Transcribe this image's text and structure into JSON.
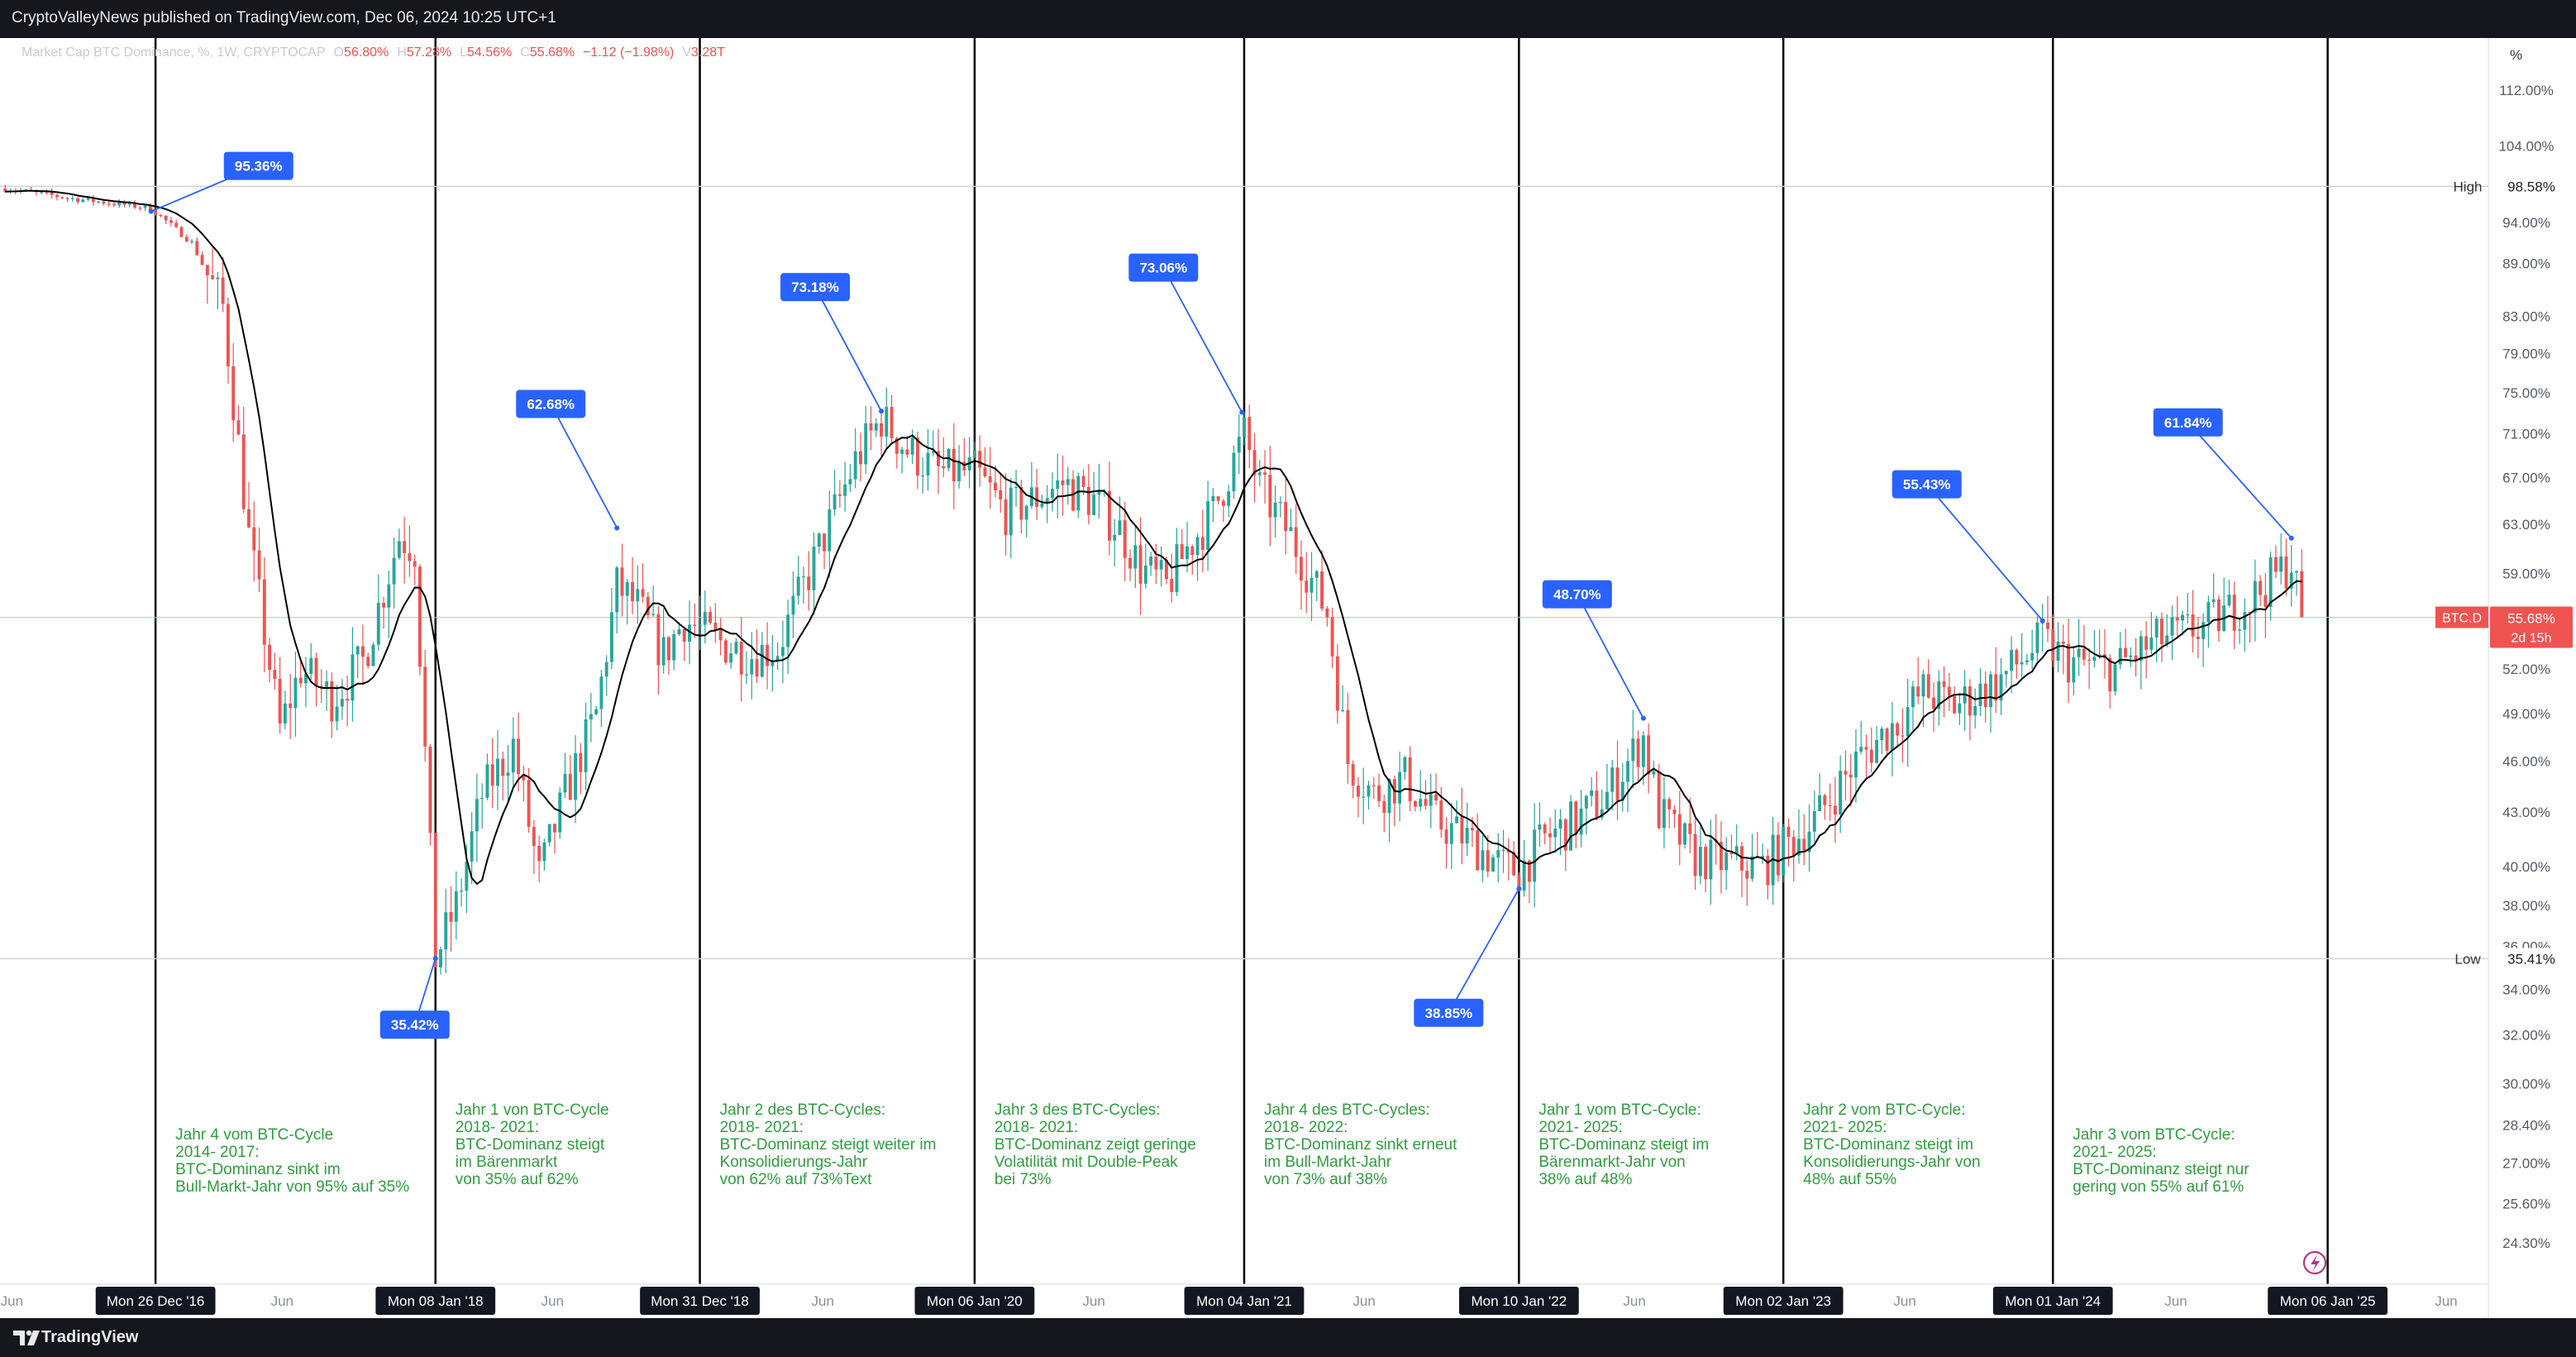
{
  "header": {
    "publisher_line": "CryptoValleyNews published on TradingView.com, Dec 06, 2024 10:25 UTC+1"
  },
  "legend": {
    "symbol": "Market Cap BTC Dominance, %, 1W, CRYPTOCAP",
    "o_label": "O",
    "o_value": "56.80%",
    "h_label": "H",
    "h_value": "57.28%",
    "l_label": "L",
    "l_value": "54.56%",
    "c_label": "C",
    "c_value": "55.68%",
    "change": "−1.12 (−1.98%)",
    "v_label": "V",
    "v_value": "3.28T"
  },
  "footer": {
    "brand": "TradingView"
  },
  "colors": {
    "up": "#26a69a",
    "down": "#ef5350",
    "callout": "#2962ff",
    "annotation": "#2e9e3e",
    "divider": "#000000",
    "ma": "#000000"
  },
  "chart_data": {
    "type": "candlestick",
    "title": "Market Cap BTC Dominance, %, 1W, CRYPTOCAP",
    "ylabel": "%",
    "ylim": [
      23.0,
      120.0
    ],
    "y_scale": "log",
    "y_ticks": [
      "112.00%",
      "104.00%",
      "94.00%",
      "89.00%",
      "83.00%",
      "79.00%",
      "75.00%",
      "71.00%",
      "67.00%",
      "63.00%",
      "59.00%",
      "52.00%",
      "49.00%",
      "46.00%",
      "43.00%",
      "40.00%",
      "38.00%",
      "36.00%",
      "34.00%",
      "32.00%",
      "30.00%",
      "28.40%",
      "27.00%",
      "25.60%",
      "24.30%"
    ],
    "x_ticks": [
      {
        "date": "2016-06-15",
        "label": "Jun",
        "major": false
      },
      {
        "date": "2016-12-26",
        "label": "Mon 26 Dec '16",
        "major": true
      },
      {
        "date": "2017-06-15",
        "label": "Jun",
        "major": false
      },
      {
        "date": "2018-01-08",
        "label": "Mon 08 Jan '18",
        "major": true
      },
      {
        "date": "2018-06-15",
        "label": "Jun",
        "major": false
      },
      {
        "date": "2018-12-31",
        "label": "Mon 31 Dec '18",
        "major": true
      },
      {
        "date": "2019-06-15",
        "label": "Jun",
        "major": false
      },
      {
        "date": "2020-01-06",
        "label": "Mon 06 Jan '20",
        "major": true
      },
      {
        "date": "2020-06-15",
        "label": "Jun",
        "major": false
      },
      {
        "date": "2021-01-04",
        "label": "Mon 04 Jan '21",
        "major": true
      },
      {
        "date": "2021-06-15",
        "label": "Jun",
        "major": false
      },
      {
        "date": "2022-01-10",
        "label": "Mon 10 Jan '22",
        "major": true
      },
      {
        "date": "2022-06-15",
        "label": "Jun",
        "major": false
      },
      {
        "date": "2023-01-02",
        "label": "Mon 02 Jan '23",
        "major": true
      },
      {
        "date": "2023-06-15",
        "label": "Jun",
        "major": false
      },
      {
        "date": "2024-01-01",
        "label": "Mon 01 Jan '24",
        "major": true
      },
      {
        "date": "2024-06-15",
        "label": "Jun",
        "major": false
      },
      {
        "date": "2025-01-06",
        "label": "Mon 06 Jan '25",
        "major": true
      },
      {
        "date": "2025-06-15",
        "label": "Jun",
        "major": false
      }
    ],
    "cycle_dividers": [
      "2016-12-26",
      "2018-01-08",
      "2018-12-31",
      "2020-01-06",
      "2021-01-04",
      "2022-01-10",
      "2023-01-02",
      "2024-01-01",
      "2025-01-06"
    ],
    "high_line": {
      "label": "High",
      "value": 98.58,
      "text": "98.58%"
    },
    "low_line": {
      "label": "Low",
      "value": 35.41,
      "text": "35.41%"
    },
    "current_price": {
      "symbol": "BTC.D",
      "value": 55.68,
      "text": "55.68%",
      "countdown": "2d 15h"
    },
    "callouts": [
      {
        "text": "95.36%",
        "date": "2016-12-20",
        "value": 95.36,
        "dir": "up"
      },
      {
        "text": "35.42%",
        "date": "2018-01-08",
        "value": 35.42,
        "dir": "down"
      },
      {
        "text": "62.68%",
        "date": "2018-09-10",
        "value": 62.68,
        "dir": "up"
      },
      {
        "text": "73.18%",
        "date": "2019-09-02",
        "value": 73.18,
        "dir": "up"
      },
      {
        "text": "73.06%",
        "date": "2021-01-01",
        "value": 73.06,
        "dir": "up"
      },
      {
        "text": "38.85%",
        "date": "2022-01-10",
        "value": 38.85,
        "dir": "down"
      },
      {
        "text": "48.70%",
        "date": "2022-06-27",
        "value": 48.7,
        "dir": "up"
      },
      {
        "text": "55.43%",
        "date": "2023-12-18",
        "value": 55.43,
        "dir": "up"
      },
      {
        "text": "61.84%",
        "date": "2024-11-18",
        "value": 61.84,
        "dir": "up"
      }
    ],
    "annotations": [
      {
        "start": "2016-12-26",
        "lines": [
          "Jahr 4 vom BTC-Cycle",
          "2014- 2017:",
          "BTC-Dominanz sinkt im",
          "Bull-Markt-Jahr von 95% auf 35%"
        ],
        "row": 1
      },
      {
        "start": "2018-01-08",
        "lines": [
          "Jahr 1 von BTC-Cycle",
          "2018- 2021:",
          "BTC-Dominanz steigt",
          "im Bärenmarkt",
          "von 35% auf 62%"
        ],
        "row": 0
      },
      {
        "start": "2018-12-31",
        "lines": [
          "Jahr 2 des BTC-Cycles:",
          "2018- 2021:",
          "BTC-Dominanz steigt weiter im",
          "Konsolidierungs-Jahr",
          "von 62% auf 73%Text"
        ],
        "row": 0
      },
      {
        "start": "2020-01-06",
        "lines": [
          "Jahr 3 des BTC-Cycles:",
          "2018- 2021:",
          "BTC-Dominanz zeigt geringe",
          "Volatilität mit Double-Peak",
          "bei 73%"
        ],
        "row": 0
      },
      {
        "start": "2021-01-04",
        "lines": [
          "Jahr 4 des BTC-Cycles:",
          "2018- 2022:",
          "BTC-Dominanz sinkt erneut",
          "im Bull-Markt-Jahr",
          "von 73% auf 38%"
        ],
        "row": 0
      },
      {
        "start": "2022-01-10",
        "lines": [
          "Jahr 1 vom BTC-Cycle:",
          "2021- 2025:",
          "BTC-Dominanz steigt im",
          "Bärenmarkt-Jahr von",
          "38% auf 48%"
        ],
        "row": 0
      },
      {
        "start": "2023-01-02",
        "lines": [
          "Jahr 2 vom BTC-Cycle:",
          "2021- 2025:",
          "BTC-Dominanz steigt im",
          "Konsolidierungs-Jahr von",
          "48% auf 55%"
        ],
        "row": 0
      },
      {
        "start": "2024-01-01",
        "lines": [
          "Jahr 3 vom BTC-Cycle:",
          "2021- 2025:",
          "BTC-Dominanz steigt nur",
          "gering von 55% auf 61%"
        ],
        "row": 1
      }
    ],
    "anchors": [
      [
        "2016-06-06",
        98.3
      ],
      [
        "2016-09-05",
        97.0
      ],
      [
        "2016-12-19",
        95.8
      ],
      [
        "2017-02-13",
        91.5
      ],
      [
        "2017-03-27",
        84.0
      ],
      [
        "2017-05-01",
        62.0
      ],
      [
        "2017-06-12",
        48.0
      ],
      [
        "2017-07-10",
        52.0
      ],
      [
        "2017-08-21",
        50.0
      ],
      [
        "2017-10-02",
        52.5
      ],
      [
        "2017-11-20",
        62.0
      ],
      [
        "2017-12-11",
        61.0
      ],
      [
        "2018-01-08",
        35.42
      ],
      [
        "2018-02-05",
        38.0
      ],
      [
        "2018-03-12",
        44.0
      ],
      [
        "2018-04-23",
        47.0
      ],
      [
        "2018-05-28",
        39.5
      ],
      [
        "2018-07-02",
        44.0
      ],
      [
        "2018-08-13",
        49.0
      ],
      [
        "2018-09-10",
        58.0
      ],
      [
        "2018-10-08",
        56.5
      ],
      [
        "2018-11-12",
        53.0
      ],
      [
        "2018-12-10",
        55.5
      ],
      [
        "2019-01-21",
        54.0
      ],
      [
        "2019-03-11",
        53.0
      ],
      [
        "2019-04-15",
        53.5
      ],
      [
        "2019-05-20",
        58.0
      ],
      [
        "2019-06-24",
        63.0
      ],
      [
        "2019-07-29",
        68.5
      ],
      [
        "2019-09-02",
        72.5
      ],
      [
        "2019-10-07",
        69.5
      ],
      [
        "2019-11-18",
        67.5
      ],
      [
        "2020-01-06",
        67.5
      ],
      [
        "2020-02-17",
        64.0
      ],
      [
        "2020-03-23",
        65.0
      ],
      [
        "2020-05-04",
        66.5
      ],
      [
        "2020-06-15",
        65.0
      ],
      [
        "2020-07-20",
        62.5
      ],
      [
        "2020-08-17",
        59.5
      ],
      [
        "2020-09-21",
        58.0
      ],
      [
        "2020-10-19",
        61.0
      ],
      [
        "2020-11-23",
        64.0
      ],
      [
        "2021-01-04",
        71.0
      ],
      [
        "2021-01-25",
        66.0
      ],
      [
        "2021-03-08",
        62.0
      ],
      [
        "2021-04-26",
        56.0
      ],
      [
        "2021-05-24",
        46.0
      ],
      [
        "2021-06-28",
        44.0
      ],
      [
        "2021-08-09",
        45.0
      ],
      [
        "2021-09-20",
        42.5
      ],
      [
        "2021-11-01",
        41.5
      ],
      [
        "2021-12-20",
        40.0
      ],
      [
        "2022-01-10",
        39.8
      ],
      [
        "2022-02-14",
        41.5
      ],
      [
        "2022-03-28",
        42.5
      ],
      [
        "2022-05-09",
        44.0
      ],
      [
        "2022-06-27",
        47.5
      ],
      [
        "2022-07-18",
        43.0
      ],
      [
        "2022-09-05",
        40.5
      ],
      [
        "2022-10-17",
        40.2
      ],
      [
        "2022-12-05",
        40.0
      ],
      [
        "2023-01-02",
        41.0
      ],
      [
        "2023-02-13",
        42.5
      ],
      [
        "2023-04-10",
        46.0
      ],
      [
        "2023-06-05",
        48.5
      ],
      [
        "2023-07-10",
        50.5
      ],
      [
        "2023-08-21",
        49.5
      ],
      [
        "2023-10-16",
        51.0
      ],
      [
        "2023-12-18",
        54.0
      ],
      [
        "2024-01-22",
        52.5
      ],
      [
        "2024-03-25",
        52.0
      ],
      [
        "2024-05-20",
        54.0
      ],
      [
        "2024-07-22",
        55.0
      ],
      [
        "2024-09-23",
        57.0
      ],
      [
        "2024-11-18",
        60.0
      ],
      [
        "2024-12-02",
        55.68
      ]
    ]
  }
}
